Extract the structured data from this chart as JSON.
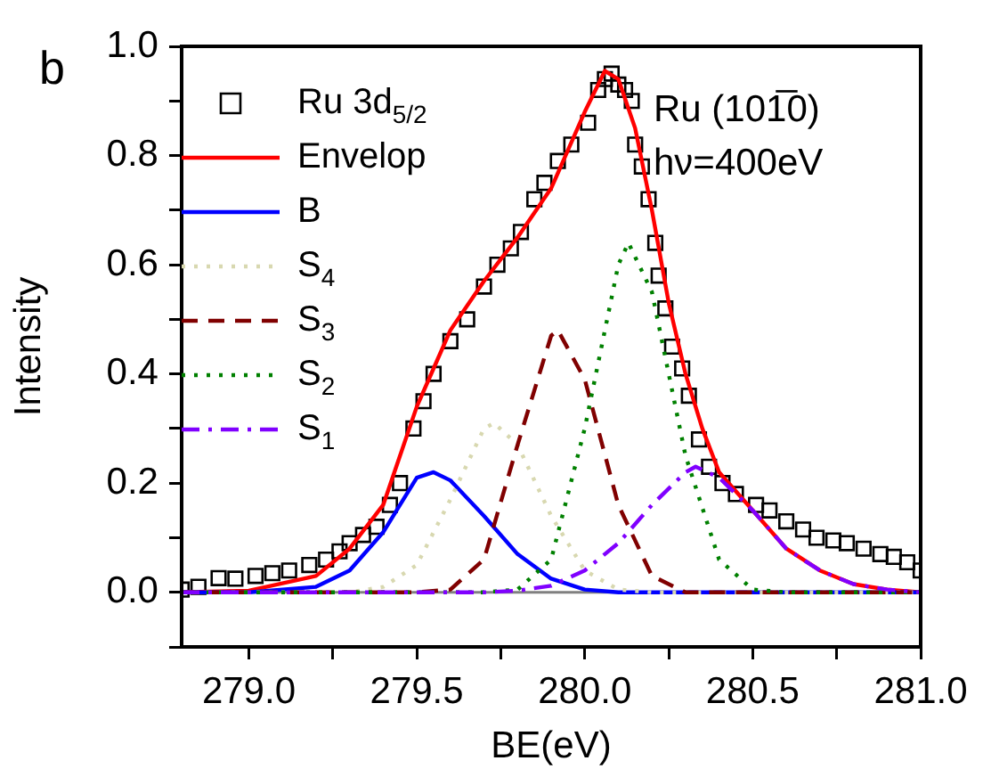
{
  "chart_data": {
    "type": "line",
    "title": "b",
    "xlabel": "BE(eV)",
    "ylabel": "Intensity",
    "annotations": [
      "Ru (101̅0)",
      "hν=400eV"
    ],
    "xlim": [
      278.8,
      281.0
    ],
    "xticks": [
      {
        "value": 279,
        "label": "279.0"
      },
      {
        "value": 279.25,
        "label": null
      },
      279.5,
      {
        "value": 279.75,
        "label": null
      },
      {
        "value": 280,
        "label": "280.0"
      },
      {
        "value": 280.25,
        "label": null
      },
      280.5,
      {
        "value": 280.75,
        "label": null
      },
      {
        "value": 281,
        "label": "281.0"
      }
    ],
    "ylim": [
      -0.1,
      1.0
    ],
    "yticks": [
      {
        "value": -0.1,
        "label": null
      },
      {
        "value": 0,
        "label": "0.0"
      },
      {
        "value": 0.1,
        "label": null
      },
      0.2,
      {
        "value": 0.3,
        "label": null
      },
      0.4,
      {
        "value": 0.5,
        "label": null
      },
      0.6,
      {
        "value": 0.7,
        "label": null
      },
      0.8,
      {
        "value": 0.9,
        "label": null
      },
      {
        "value": 1,
        "label": "1.0"
      }
    ],
    "grid": false,
    "legend": "top left",
    "ref_lines": [
      {
        "axis": "y",
        "value": 0,
        "color": "#808080"
      }
    ],
    "series": [
      {
        "name": "Ru 3d$_{5/2}$",
        "type": "scatter",
        "marker": "square",
        "color": "#000000",
        "x": [
          278.8,
          278.85,
          278.91,
          278.96,
          279.02,
          279.07,
          279.12,
          279.18,
          279.23,
          279.27,
          279.3,
          279.34,
          279.38,
          279.42,
          279.45,
          279.49,
          279.52,
          279.55,
          279.6,
          279.65,
          279.7,
          279.74,
          279.78,
          279.81,
          279.85,
          279.88,
          279.92,
          279.96,
          280.01,
          280.04,
          280.06,
          280.08,
          280.1,
          280.12,
          280.14,
          280.15,
          280.17,
          280.19,
          280.21,
          280.22,
          280.24,
          280.26,
          280.29,
          280.31,
          280.34,
          280.37,
          280.41,
          280.45,
          280.51,
          280.55,
          280.6,
          280.65,
          280.69,
          280.74,
          280.78,
          280.83,
          280.88,
          280.92,
          280.96,
          281.0
        ],
        "values": [
          0.005,
          0.01,
          0.026,
          0.025,
          0.03,
          0.035,
          0.04,
          0.05,
          0.06,
          0.075,
          0.09,
          0.105,
          0.12,
          0.16,
          0.2,
          0.3,
          0.35,
          0.4,
          0.46,
          0.5,
          0.56,
          0.6,
          0.63,
          0.66,
          0.72,
          0.75,
          0.79,
          0.82,
          0.86,
          0.92,
          0.94,
          0.95,
          0.93,
          0.92,
          0.9,
          0.82,
          0.78,
          0.72,
          0.64,
          0.58,
          0.52,
          0.45,
          0.41,
          0.36,
          0.28,
          0.23,
          0.2,
          0.18,
          0.16,
          0.15,
          0.13,
          0.115,
          0.1,
          0.095,
          0.09,
          0.08,
          0.07,
          0.065,
          0.055,
          0.04
        ]
      },
      {
        "name": "Envelop",
        "type": "line",
        "marker": "none",
        "line_style": "solid",
        "color": "#ff0000",
        "x": [
          278.8,
          279.0,
          279.2,
          279.3,
          279.4,
          279.45,
          279.5,
          279.55,
          279.6,
          279.7,
          279.8,
          279.9,
          280.0,
          280.06,
          280.1,
          280.15,
          280.2,
          280.25,
          280.3,
          280.35,
          280.4,
          280.5,
          280.6,
          280.7,
          280.8,
          280.9,
          281.0
        ],
        "values": [
          0,
          0.003,
          0.03,
          0.08,
          0.16,
          0.25,
          0.34,
          0.41,
          0.48,
          0.57,
          0.65,
          0.74,
          0.88,
          0.955,
          0.94,
          0.85,
          0.7,
          0.53,
          0.4,
          0.3,
          0.22,
          0.15,
          0.08,
          0.04,
          0.015,
          0.005,
          0
        ]
      },
      {
        "name": "B",
        "type": "line",
        "marker": "none",
        "line_style": "solid",
        "color": "#0000ff",
        "x": [
          278.8,
          279.0,
          279.2,
          279.3,
          279.4,
          279.45,
          279.5,
          279.55,
          279.6,
          279.7,
          279.8,
          279.9,
          280.0,
          280.1,
          281.0
        ],
        "values": [
          0,
          0,
          0.01,
          0.04,
          0.11,
          0.16,
          0.21,
          0.22,
          0.205,
          0.14,
          0.07,
          0.025,
          0.005,
          0,
          0
        ]
      },
      {
        "name": "S$_{4}$",
        "type": "line",
        "marker": "none",
        "line_style": "dotted",
        "color": "#d8d8b0",
        "x": [
          278.8,
          279.3,
          279.4,
          279.5,
          279.6,
          279.7,
          279.73,
          279.8,
          279.9,
          280.0,
          280.1,
          280.2,
          281.0
        ],
        "values": [
          0,
          0,
          0.01,
          0.05,
          0.17,
          0.3,
          0.31,
          0.27,
          0.14,
          0.04,
          0.005,
          0,
          0
        ]
      },
      {
        "name": "S$_{3}$",
        "type": "line",
        "marker": "none",
        "line_style": "dashed",
        "color": "#800000",
        "x": [
          278.8,
          279.5,
          279.6,
          279.7,
          279.8,
          279.9,
          279.92,
          280.0,
          280.1,
          280.2,
          280.3,
          281.0
        ],
        "values": [
          0,
          0,
          0.005,
          0.06,
          0.27,
          0.47,
          0.48,
          0.39,
          0.16,
          0.03,
          0,
          0
        ]
      },
      {
        "name": "S$_{2}$",
        "type": "line",
        "marker": "none",
        "line_style": "dotted",
        "color": "#008000",
        "x": [
          278.8,
          279.7,
          279.8,
          279.9,
          280.0,
          280.1,
          280.13,
          280.2,
          280.3,
          280.4,
          280.5,
          280.6,
          281.0
        ],
        "values": [
          0,
          0,
          0.005,
          0.06,
          0.3,
          0.6,
          0.64,
          0.55,
          0.25,
          0.06,
          0.005,
          0,
          0
        ]
      },
      {
        "name": "S$_{1}$",
        "type": "line",
        "marker": "none",
        "line_style": "dashdot",
        "color": "#8000ff",
        "x": [
          278.8,
          279.7,
          279.8,
          279.9,
          280.0,
          280.1,
          280.2,
          280.3,
          280.33,
          280.4,
          280.5,
          280.6,
          280.7,
          280.8,
          280.9,
          281.0
        ],
        "values": [
          0,
          0,
          0.003,
          0.012,
          0.04,
          0.09,
          0.16,
          0.22,
          0.23,
          0.21,
          0.15,
          0.08,
          0.04,
          0.015,
          0.005,
          0
        ]
      }
    ]
  }
}
